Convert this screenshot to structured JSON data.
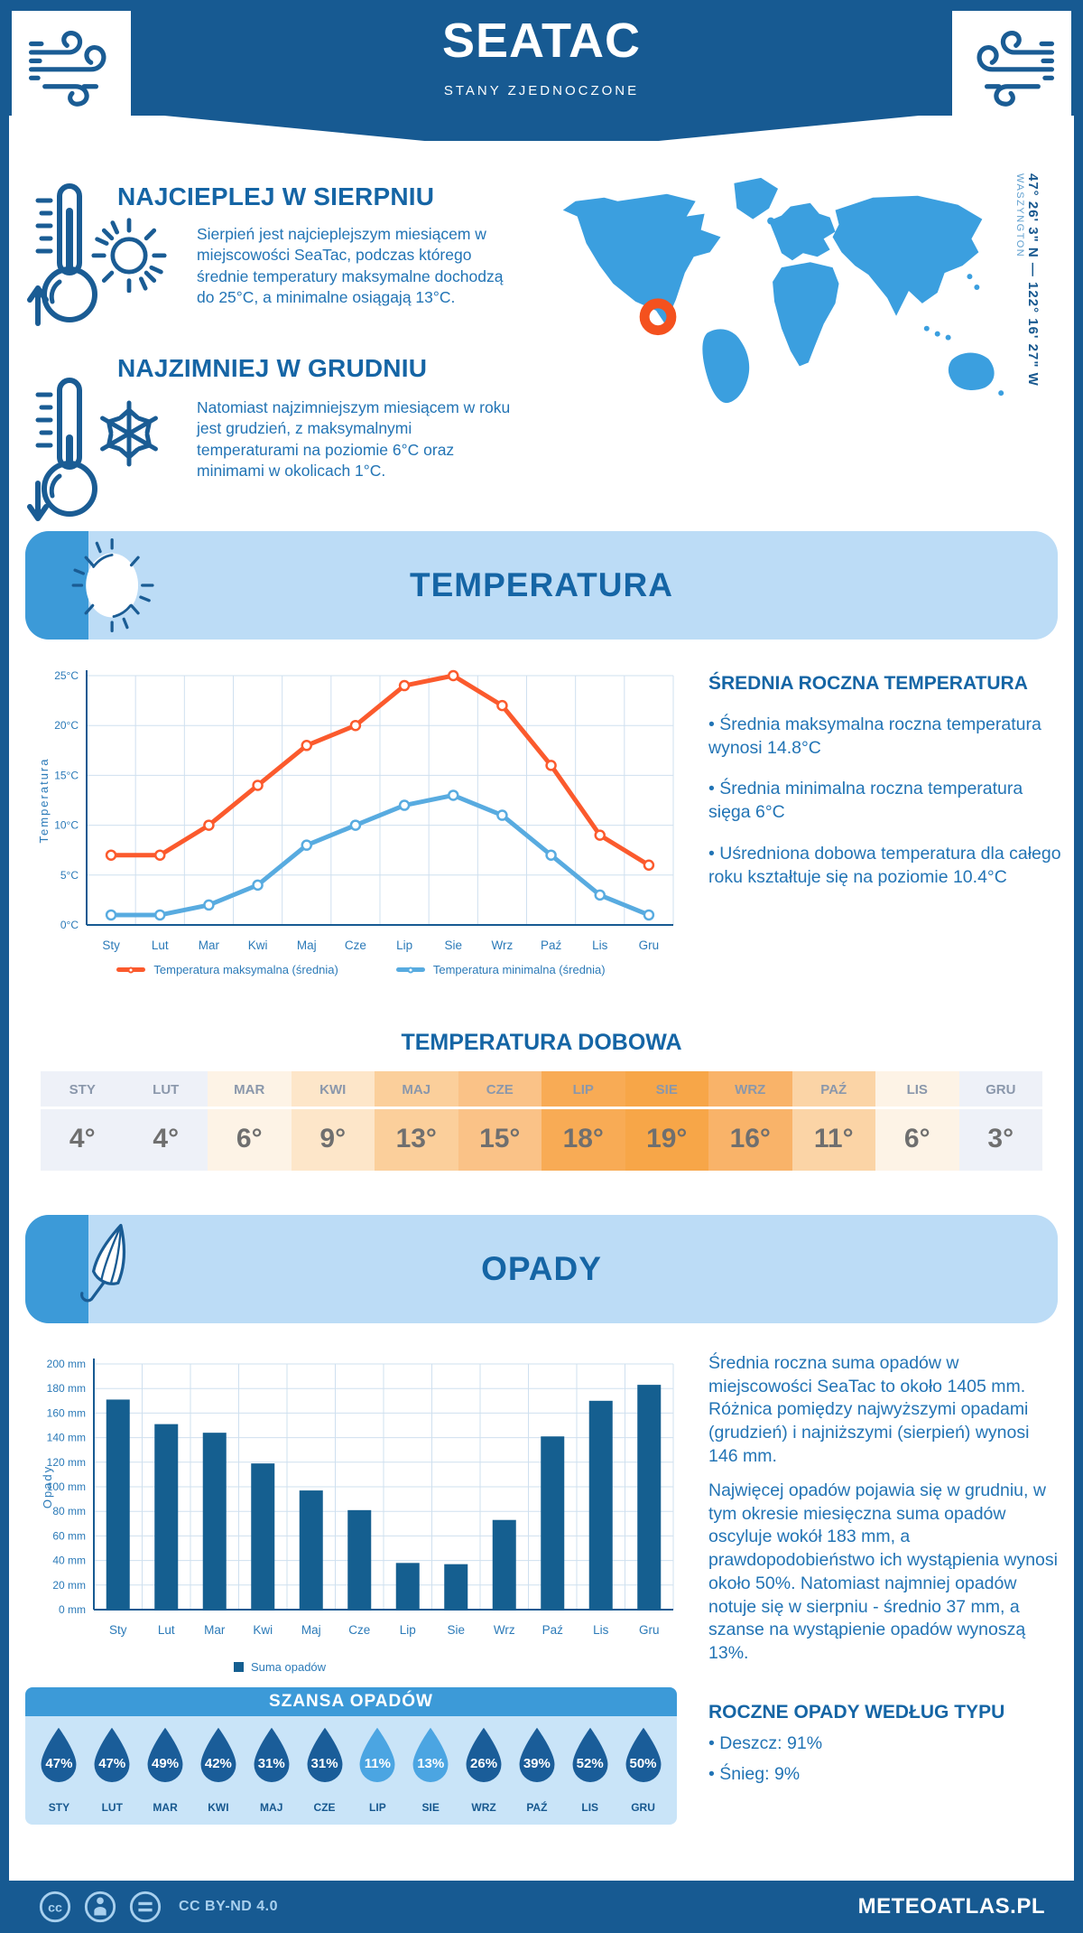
{
  "header": {
    "title": "SEATAC",
    "subtitle": "STANY ZJEDNOCZONE"
  },
  "warm_section": {
    "heading": "NAJCIEPLEJ W SIERPNIU",
    "body": "Sierpień jest najcieplejszym miesiącem w miejscowości SeaTac, podczas którego średnie temperatury maksymalne dochodzą do 25°C, a minimalne osiągają 13°C."
  },
  "cold_section": {
    "heading": "NAJZIMNIEJ W GRUDNIU",
    "body": "Natomiast najzimniejszym miesiącem w roku jest grudzień, z maksymalnymi temperaturami na poziomie 6°C oraz minimami w okolicach 1°C."
  },
  "map": {
    "coordinates": "47° 26' 3\" N — 122° 16' 27\" W",
    "region": "WASZYNGTON",
    "land_color": "#3b9fdf",
    "marker_color": "#f4511e"
  },
  "temperature_section": {
    "banner_title": "TEMPERATURA",
    "annual_heading": "ŚREDNIA ROCZNA TEMPERATURA",
    "bullets": [
      "• Średnia maksymalna roczna temperatura wynosi 14.8°C",
      "• Średnia minimalna roczna temperatura sięga 6°C",
      "• Uśredniona dobowa temperatura dla całego roku kształtuje się na poziomie 10.4°C"
    ],
    "legend_max": "Temperatura maksymalna (średnia)",
    "legend_min": "Temperatura minimalna (średnia)"
  },
  "daily_temp": {
    "heading": "TEMPERATURA DOBOWA",
    "months": [
      "STY",
      "LUT",
      "MAR",
      "KWI",
      "MAJ",
      "CZE",
      "LIP",
      "SIE",
      "WRZ",
      "PAŹ",
      "LIS",
      "GRU"
    ],
    "values": [
      "4°",
      "4°",
      "6°",
      "9°",
      "13°",
      "15°",
      "18°",
      "19°",
      "16°",
      "11°",
      "6°",
      "3°"
    ],
    "colors": [
      "#eef1f8",
      "#eef1f8",
      "#fdf3e6",
      "#fde6c9",
      "#fbcf9b",
      "#fac287",
      "#f8ab55",
      "#f7a648",
      "#f9b369",
      "#fbd4a6",
      "#fdf3e6",
      "#eef1f8"
    ]
  },
  "precipitation_section": {
    "banner_title": "OPADY",
    "para1": "Średnia roczna suma opadów w miejscowości SeaTac to około 1405 mm. Różnica pomiędzy najwyższymi opadami (grudzień) i najniższymi (sierpień) wynosi 146 mm.",
    "para2": "Najwięcej opadów pojawia się w grudniu, w tym okresie miesięczna suma opadów oscyluje wokół 183 mm, a prawdopodobieństwo ich wystąpienia wynosi około 50%. Natomiast najmniej opadów notuje się w sierpniu - średnio 37 mm, a szanse na wystąpienie opadów wynoszą 13%.",
    "type_heading": "ROCZNE OPADY WEDŁUG TYPU",
    "type_bullets": [
      "• Deszcz: 91%",
      "• Śnieg: 9%"
    ]
  },
  "rain_chance": {
    "heading": "SZANSA OPADÓW",
    "months": [
      "STY",
      "LUT",
      "MAR",
      "KWI",
      "MAJ",
      "CZE",
      "LIP",
      "SIE",
      "WRZ",
      "PAŹ",
      "LIS",
      "GRU"
    ],
    "values": [
      "47%",
      "47%",
      "49%",
      "42%",
      "31%",
      "31%",
      "11%",
      "13%",
      "26%",
      "39%",
      "52%",
      "50%"
    ],
    "drop_color": "#1a5d99",
    "drop_color_light": "#4ba5e2",
    "light_indices": [
      6,
      7
    ]
  },
  "footer": {
    "license": "CC BY-ND 4.0",
    "brand": "METEOATLAS.PL",
    "cc_glyph": "cc",
    "nd_glyph": "="
  },
  "chart_data": [
    {
      "type": "line",
      "title": "Temperatura (średnia miesięczna)",
      "ylabel": "Temperatura",
      "x": [
        "Sty",
        "Lut",
        "Mar",
        "Kwi",
        "Maj",
        "Cze",
        "Lip",
        "Sie",
        "Wrz",
        "Paź",
        "Lis",
        "Gru"
      ],
      "series": [
        {
          "name": "Temperatura maksymalna (średnia)",
          "color": "#fb5a2d",
          "values": [
            7,
            7,
            10,
            14,
            18,
            20,
            24,
            25,
            22,
            16,
            9,
            6
          ]
        },
        {
          "name": "Temperatura minimalna (średnia)",
          "color": "#58abe0",
          "values": [
            1,
            1,
            2,
            4,
            8,
            10,
            12,
            13,
            11,
            7,
            3,
            1
          ]
        }
      ],
      "ylim": [
        0,
        25
      ],
      "ytick_step": 5,
      "ytick_suffix": "°C",
      "grid": true,
      "legend_position": "bottom"
    },
    {
      "type": "bar",
      "title": "Opady (suma miesięczna)",
      "ylabel": "Opady",
      "categories": [
        "Sty",
        "Lut",
        "Mar",
        "Kwi",
        "Maj",
        "Cze",
        "Lip",
        "Sie",
        "Wrz",
        "Paź",
        "Lis",
        "Gru"
      ],
      "values": [
        171,
        151,
        144,
        119,
        97,
        81,
        38,
        37,
        73,
        141,
        170,
        183
      ],
      "ylim": [
        0,
        200
      ],
      "ytick_step": 20,
      "ytick_suffix": " mm",
      "bar_color": "#155f90",
      "legend": "Suma opadów",
      "grid": true,
      "legend_position": "bottom"
    }
  ]
}
